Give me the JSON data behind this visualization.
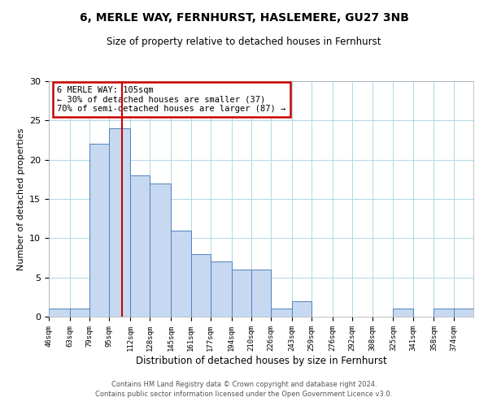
{
  "title": "6, MERLE WAY, FERNHURST, HASLEMERE, GU27 3NB",
  "subtitle": "Size of property relative to detached houses in Fernhurst",
  "xlabel": "Distribution of detached houses by size in Fernhurst",
  "ylabel": "Number of detached properties",
  "bar_labels": [
    "46sqm",
    "63sqm",
    "79sqm",
    "95sqm",
    "112sqm",
    "128sqm",
    "145sqm",
    "161sqm",
    "177sqm",
    "194sqm",
    "210sqm",
    "226sqm",
    "243sqm",
    "259sqm",
    "276sqm",
    "292sqm",
    "308sqm",
    "325sqm",
    "341sqm",
    "358sqm",
    "374sqm"
  ],
  "bar_values": [
    1,
    1,
    22,
    24,
    18,
    17,
    11,
    8,
    7,
    6,
    6,
    1,
    2,
    0,
    0,
    0,
    0,
    1,
    0,
    1,
    1
  ],
  "bar_color": "#c6d9f0",
  "bar_edge_color": "#4f81bd",
  "ylim": [
    0,
    30
  ],
  "yticks": [
    0,
    5,
    10,
    15,
    20,
    25,
    30
  ],
  "property_line_x": 105,
  "annotation_title": "6 MERLE WAY: 105sqm",
  "annotation_line1": "← 30% of detached houses are smaller (37)",
  "annotation_line2": "70% of semi-detached houses are larger (87) →",
  "annotation_box_color": "#ffffff",
  "annotation_box_edge_color": "#cc0000",
  "property_line_color": "#cc0000",
  "footer1": "Contains HM Land Registry data © Crown copyright and database right 2024.",
  "footer2": "Contains public sector information licensed under the Open Government Licence v3.0.",
  "bin_edges": [
    46,
    63,
    79,
    95,
    112,
    128,
    145,
    161,
    177,
    194,
    210,
    226,
    243,
    259,
    276,
    292,
    308,
    325,
    341,
    358,
    374,
    390
  ]
}
